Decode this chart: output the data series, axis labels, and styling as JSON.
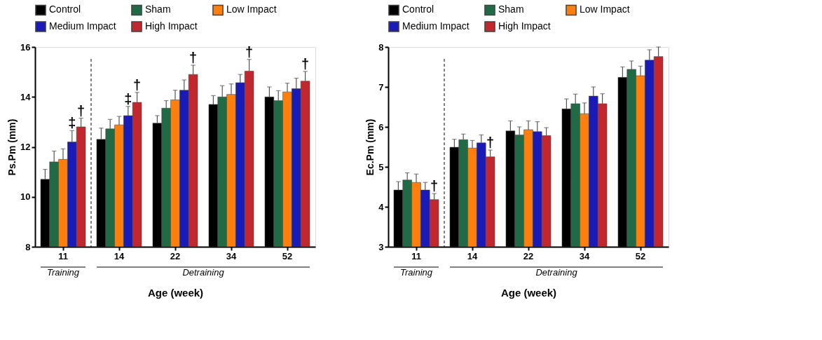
{
  "chart_data": [
    {
      "type": "bar",
      "categories": [
        "11",
        "14",
        "22",
        "34",
        "52"
      ],
      "xlabel": "Age (week)",
      "ylabel": "Ps.Pm (mm)",
      "ylim": [
        8,
        16
      ],
      "yticks": [
        8,
        10,
        12,
        14,
        16
      ],
      "grid": false,
      "legend": "top",
      "series": [
        {
          "name": "Control",
          "color": "#000000",
          "values": [
            10.7,
            12.3,
            12.95,
            13.7,
            14.0
          ],
          "errors": [
            0.4,
            0.45,
            0.3,
            0.35,
            0.4
          ]
        },
        {
          "name": "Sham",
          "color": "#1f6b45",
          "values": [
            11.4,
            12.72,
            13.55,
            14.0,
            13.85
          ],
          "errors": [
            0.43,
            0.38,
            0.3,
            0.45,
            0.4
          ]
        },
        {
          "name": "Low Impact",
          "color": "#ff7f0e",
          "values": [
            11.5,
            12.88,
            13.88,
            14.1,
            14.2
          ],
          "errors": [
            0.42,
            0.34,
            0.39,
            0.42,
            0.35
          ]
        },
        {
          "name": "Medium Impact",
          "color": "#1a1ab8",
          "values": [
            12.2,
            13.25,
            14.27,
            14.57,
            14.33
          ],
          "errors": [
            0.45,
            0.37,
            0.41,
            0.33,
            0.42
          ]
        },
        {
          "name": "High Impact",
          "color": "#c0282d",
          "values": [
            12.8,
            13.78,
            14.9,
            15.03,
            14.63
          ],
          "errors": [
            0.35,
            0.4,
            0.37,
            0.47,
            0.39
          ]
        }
      ],
      "annotations": [
        "‡",
        "†",
        "‡",
        "†",
        "†",
        "†",
        "†",
        "Training",
        "Detraining"
      ]
    },
    {
      "type": "bar",
      "categories": [
        "11",
        "14",
        "22",
        "34",
        "52"
      ],
      "xlabel": "Age (week)",
      "ylabel": "Ec.Pm (mm)",
      "ylim": [
        3,
        8
      ],
      "yticks": [
        3,
        4,
        5,
        6,
        7,
        8
      ],
      "grid": false,
      "legend": "top",
      "series": [
        {
          "name": "Control",
          "color": "#000000",
          "values": [
            4.42,
            5.49,
            5.9,
            6.45,
            7.24
          ],
          "errors": [
            0.21,
            0.2,
            0.25,
            0.25,
            0.26
          ]
        },
        {
          "name": "Sham",
          "color": "#1f6b45",
          "values": [
            4.67,
            5.68,
            5.8,
            6.58,
            7.44
          ],
          "errors": [
            0.18,
            0.14,
            0.2,
            0.24,
            0.21
          ]
        },
        {
          "name": "Low Impact",
          "color": "#ff7f0e",
          "values": [
            4.61,
            5.47,
            5.93,
            6.33,
            7.28
          ],
          "errors": [
            0.21,
            0.19,
            0.22,
            0.27,
            0.24
          ]
        },
        {
          "name": "Medium Impact",
          "color": "#1a1ab8",
          "values": [
            4.42,
            5.6,
            5.88,
            6.77,
            7.67
          ],
          "errors": [
            0.19,
            0.2,
            0.25,
            0.23,
            0.26
          ]
        },
        {
          "name": "High Impact",
          "color": "#c0282d",
          "values": [
            4.18,
            5.25,
            5.78,
            6.58,
            7.76
          ],
          "errors": [
            0.15,
            0.17,
            0.2,
            0.25,
            0.24
          ]
        }
      ],
      "annotations": [
        "†",
        "†",
        "Training",
        "Detraining"
      ]
    }
  ]
}
